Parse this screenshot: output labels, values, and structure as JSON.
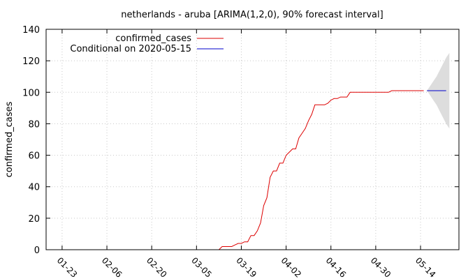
{
  "chart_data": {
    "type": "line",
    "title": "netherlands - aruba [ARIMA(1,2,0), 90% forecast interval]",
    "xlabel": "",
    "ylabel": "confirmed_cases",
    "xlim": [
      "2020-01-18",
      "2020-05-26"
    ],
    "ylim": [
      0,
      140
    ],
    "x_tick_labels": [
      "01-23",
      "02-06",
      "02-20",
      "03-05",
      "03-19",
      "04-02",
      "04-16",
      "04-30",
      "05-14"
    ],
    "x_ticks": [
      "2020-01-23",
      "2020-02-06",
      "2020-02-20",
      "2020-03-05",
      "2020-03-19",
      "2020-04-02",
      "2020-04-16",
      "2020-04-30",
      "2020-05-14"
    ],
    "y_ticks": [
      0,
      20,
      40,
      60,
      80,
      100,
      120,
      140
    ],
    "grid": true,
    "legend_position": "top-left",
    "series": [
      {
        "name": "confirmed_cases",
        "color": "#dd0000",
        "points": [
          [
            "2020-01-22",
            0
          ],
          [
            "2020-03-12",
            0
          ],
          [
            "2020-03-13",
            2
          ],
          [
            "2020-03-14",
            2
          ],
          [
            "2020-03-15",
            2
          ],
          [
            "2020-03-16",
            2
          ],
          [
            "2020-03-17",
            3
          ],
          [
            "2020-03-18",
            4
          ],
          [
            "2020-03-19",
            4
          ],
          [
            "2020-03-20",
            5
          ],
          [
            "2020-03-21",
            5
          ],
          [
            "2020-03-22",
            9
          ],
          [
            "2020-03-23",
            9
          ],
          [
            "2020-03-24",
            12
          ],
          [
            "2020-03-25",
            17
          ],
          [
            "2020-03-26",
            28
          ],
          [
            "2020-03-27",
            33
          ],
          [
            "2020-03-28",
            46
          ],
          [
            "2020-03-29",
            50
          ],
          [
            "2020-03-30",
            50
          ],
          [
            "2020-03-31",
            55
          ],
          [
            "2020-04-01",
            55
          ],
          [
            "2020-04-02",
            60
          ],
          [
            "2020-04-03",
            62
          ],
          [
            "2020-04-04",
            64
          ],
          [
            "2020-04-05",
            64
          ],
          [
            "2020-04-06",
            71
          ],
          [
            "2020-04-07",
            74
          ],
          [
            "2020-04-08",
            77
          ],
          [
            "2020-04-09",
            82
          ],
          [
            "2020-04-10",
            86
          ],
          [
            "2020-04-11",
            92
          ],
          [
            "2020-04-12",
            92
          ],
          [
            "2020-04-13",
            92
          ],
          [
            "2020-04-14",
            92
          ],
          [
            "2020-04-15",
            93
          ],
          [
            "2020-04-16",
            95
          ],
          [
            "2020-04-17",
            96
          ],
          [
            "2020-04-18",
            96
          ],
          [
            "2020-04-19",
            97
          ],
          [
            "2020-04-20",
            97
          ],
          [
            "2020-04-21",
            97
          ],
          [
            "2020-04-22",
            100
          ],
          [
            "2020-04-23",
            100
          ],
          [
            "2020-04-30",
            100
          ],
          [
            "2020-05-04",
            100
          ],
          [
            "2020-05-05",
            101
          ],
          [
            "2020-05-15",
            101
          ]
        ]
      },
      {
        "name": "Conditional on 2020-05-15",
        "color": "#0000cc",
        "points": [
          [
            "2020-05-16",
            101
          ],
          [
            "2020-05-22",
            101
          ]
        ]
      }
    ],
    "forecast_interval": {
      "color": "#dddddd",
      "points": [
        [
          "2020-05-16",
          101,
          101
        ],
        [
          "2020-05-17",
          98,
          104
        ],
        [
          "2020-05-18",
          95,
          107
        ],
        [
          "2020-05-19",
          92,
          110
        ],
        [
          "2020-05-20",
          88,
          114
        ],
        [
          "2020-05-21",
          84,
          118
        ],
        [
          "2020-05-22",
          80,
          122
        ],
        [
          "2020-05-23",
          77,
          125
        ]
      ]
    }
  }
}
